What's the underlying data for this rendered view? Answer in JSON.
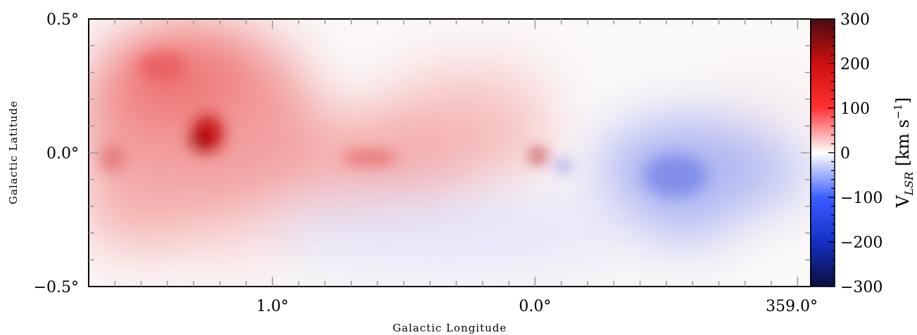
{
  "chart_data": {
    "type": "heatmap",
    "xlabel": "Galactic Longitude",
    "ylabel": "Galactic Latitude",
    "x_range_deg": [
      1.7,
      358.95
    ],
    "y_range_deg": [
      -0.5,
      0.5
    ],
    "x_ticks": [
      {
        "value": 1.0,
        "label": "1.0°"
      },
      {
        "value": 0.0,
        "label": "0.0°"
      },
      {
        "value": -1.0,
        "label": "359.0°"
      }
    ],
    "y_ticks": [
      {
        "value": 0.5,
        "label": "0.5°"
      },
      {
        "value": 0.0,
        "label": "0.0°"
      },
      {
        "value": -0.5,
        "label": "−0.5°"
      }
    ],
    "colorbar": {
      "label": "V",
      "label_subscript": "LSR",
      "units": "[km s",
      "units_exp": "−1",
      "units_close": "]",
      "range": [
        -300,
        300
      ],
      "ticks": [
        {
          "value": 300,
          "label": "300"
        },
        {
          "value": 200,
          "label": "200"
        },
        {
          "value": 100,
          "label": "100"
        },
        {
          "value": 0,
          "label": "0"
        },
        {
          "value": -100,
          "label": "−100"
        },
        {
          "value": -200,
          "label": "−200"
        },
        {
          "value": -300,
          "label": "−300"
        }
      ],
      "colors": [
        "#0a0f3c",
        "#1530c8",
        "#3a5cff",
        "#ffffff",
        "#ff3030",
        "#d01010",
        "#4a0c12"
      ]
    },
    "velocity_field": [
      {
        "l": 1.38,
        "b": 0.1,
        "v": 160
      },
      {
        "l": 1.25,
        "b": 0.05,
        "v": 200
      },
      {
        "l": 1.45,
        "b": 0.28,
        "v": 130
      },
      {
        "l": 1.6,
        "b": 0.0,
        "v": 80
      },
      {
        "l": 0.7,
        "b": 0.03,
        "v": 110
      },
      {
        "l": 0.5,
        "b": 0.2,
        "v": 80
      },
      {
        "l": 0.02,
        "b": -0.02,
        "v": 180
      },
      {
        "l": -0.55,
        "b": -0.08,
        "v": -90
      },
      {
        "l": -0.5,
        "b": 0.1,
        "v": -70
      },
      {
        "l": -0.5,
        "b": -0.25,
        "v": -60
      },
      {
        "l": 0.2,
        "b": -0.28,
        "v": -20
      },
      {
        "l": -0.8,
        "b": 0.2,
        "v": 15
      }
    ]
  }
}
